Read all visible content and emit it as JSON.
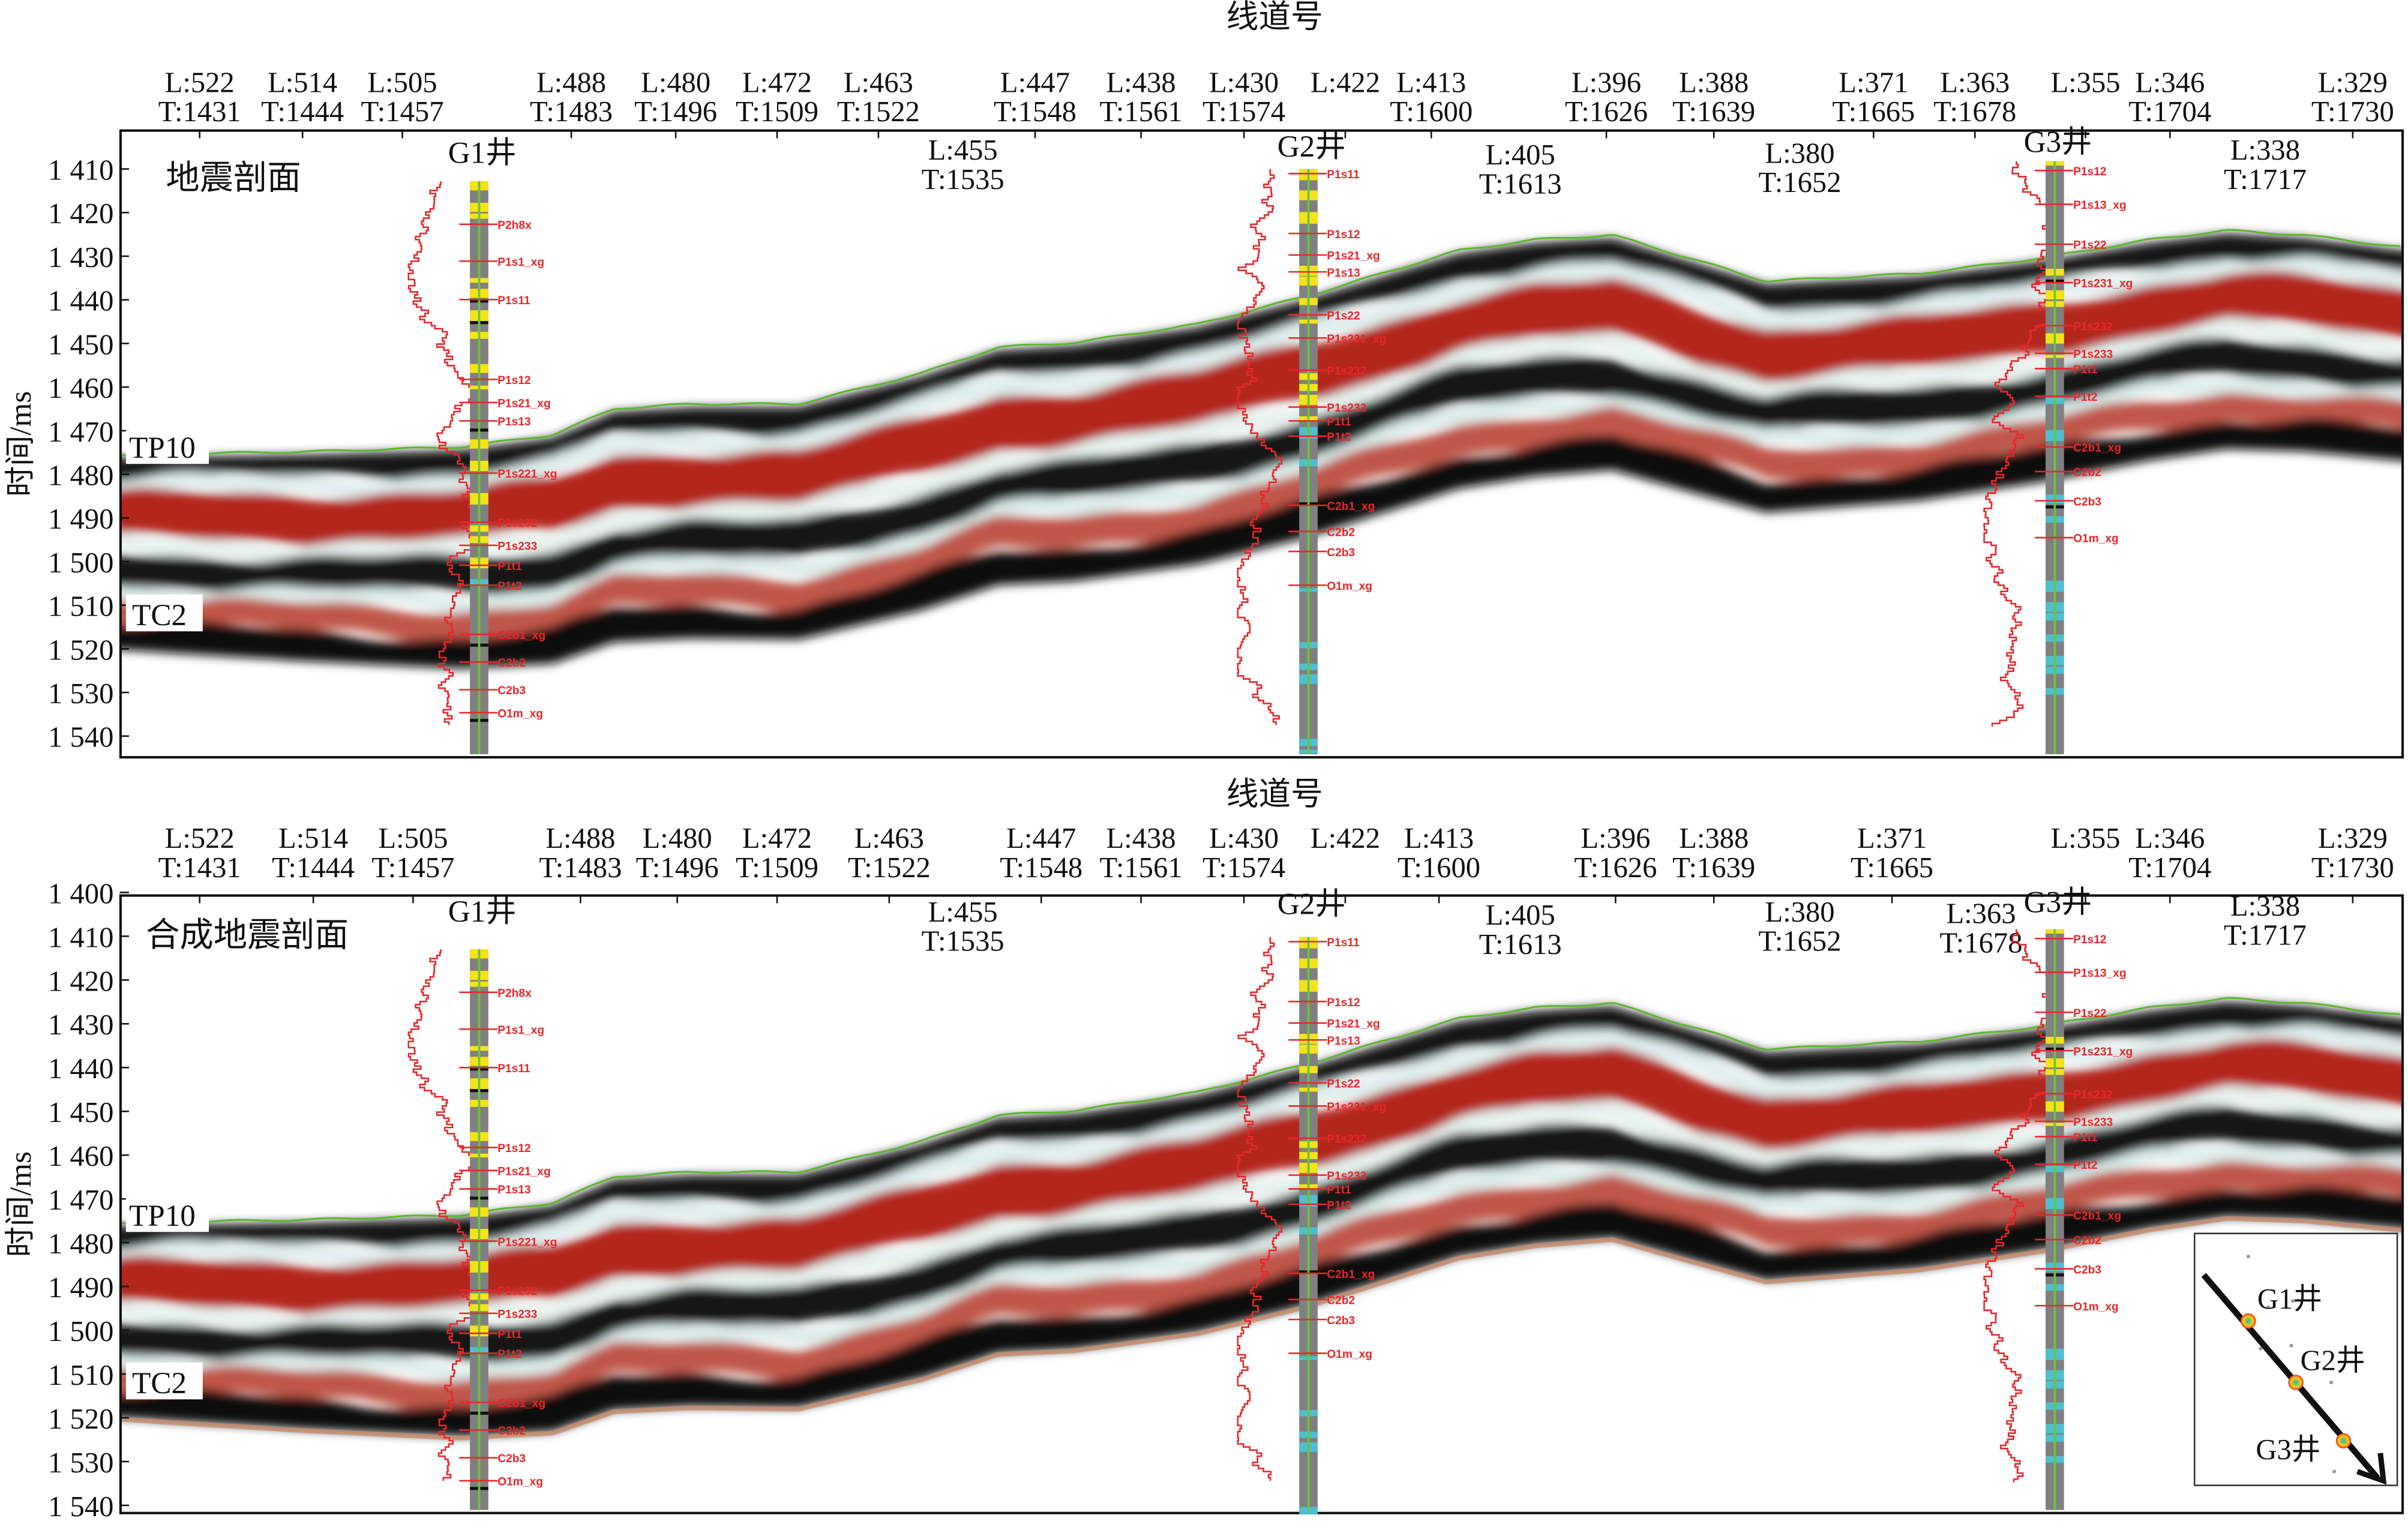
{
  "panels": [
    {
      "title": "地震剖面",
      "axis_title": "线道号",
      "y_label": "时间/ms",
      "y_ticks": [
        "1 410",
        "1 420",
        "1 430",
        "1 440",
        "1 450",
        "1 460",
        "1 470",
        "1 480",
        "1 490",
        "1 500",
        "1 510",
        "1 520",
        "1 530",
        "1 540"
      ],
      "trace_labels": [
        {
          "L": "L:522",
          "T": "T:1431"
        },
        {
          "L": "L:514",
          "T": "T:1444"
        },
        {
          "L": "L:505",
          "T": "T:1457"
        },
        {
          "L": "L:488",
          "T": "T:1483"
        },
        {
          "L": "L:480",
          "T": "T:1496"
        },
        {
          "L": "L:472",
          "T": "T:1509"
        },
        {
          "L": "L:463",
          "T": "T:1522"
        },
        {
          "L": "L:447",
          "T": "T:1548"
        },
        {
          "L": "L:438",
          "T": "T:1561"
        },
        {
          "L": "L:430",
          "T": "T:1574"
        },
        {
          "L": "L:422",
          "T": ""
        },
        {
          "L": "L:413",
          "T": "T:1600"
        },
        {
          "L": "L:396",
          "T": "T:1626"
        },
        {
          "L": "L:388",
          "T": "T:1639"
        },
        {
          "L": "L:371",
          "T": "T:1665"
        },
        {
          "L": "L:363",
          "T": "T:1678"
        },
        {
          "L": "L:355",
          "T": ""
        },
        {
          "L": "L:346",
          "T": "T:1704"
        },
        {
          "L": "L:329",
          "T": "T:1730"
        }
      ],
      "inner_trace_labels": [
        {
          "L": "L:455",
          "T": "T:1535"
        },
        {
          "L": "L:405",
          "T": "T:1613"
        },
        {
          "L": "L:380",
          "T": "T:1652"
        },
        {
          "L": "L:338",
          "T": "T:1717"
        }
      ],
      "horizons": [
        "TP10",
        "TC2"
      ],
      "wells": [
        {
          "name": "G1井",
          "formations": [
            "P2h8x",
            "P1s1_xg",
            "P1s11",
            "P1s12",
            "P1s21_xg",
            "P1s13",
            "P1s221_xg",
            "P1s232",
            "P1s233",
            "P1t1",
            "P1t2",
            "C2b1_xg",
            "C2b2",
            "C2b3",
            "O1m_xg"
          ]
        },
        {
          "name": "G2井",
          "formations": [
            "P1s11",
            "P1s12",
            "P1s21_xg",
            "P1s13",
            "P1s22",
            "P1s231_xg",
            "P1s232",
            "P1s233",
            "P1t1",
            "P1t2",
            "C2b1_xg",
            "C2b2",
            "C2b3",
            "O1m_xg"
          ]
        },
        {
          "name": "G3井",
          "formations": [
            "P1s12",
            "P1s13_xg",
            "P1s22",
            "P1s231_xg",
            "P1s232",
            "P1s233",
            "P1t1",
            "P1t2",
            "C2b1_xg",
            "C2b2",
            "C2b3",
            "O1m_xg"
          ]
        }
      ]
    },
    {
      "title": "合成地震剖面",
      "axis_title": "线道号",
      "y_label": "时间/ms",
      "y_ticks": [
        "1 400",
        "1 410",
        "1 420",
        "1 430",
        "1 440",
        "1 450",
        "1 460",
        "1 470",
        "1 480",
        "1 490",
        "1 500",
        "1 510",
        "1 520",
        "1 530",
        "1 540"
      ],
      "trace_labels": [
        {
          "L": "L:522",
          "T": "T:1431"
        },
        {
          "L": "L:514",
          "T": "T:1444"
        },
        {
          "L": "L:505",
          "T": "T:1457"
        },
        {
          "L": "L:488",
          "T": "T:1483"
        },
        {
          "L": "L:480",
          "T": "T:1496"
        },
        {
          "L": "L:472",
          "T": "T:1509"
        },
        {
          "L": "L:463",
          "T": "T:1522"
        },
        {
          "L": "L:447",
          "T": "T:1548"
        },
        {
          "L": "L:438",
          "T": "T:1561"
        },
        {
          "L": "L:430",
          "T": "T:1574"
        },
        {
          "L": "L:422",
          "T": ""
        },
        {
          "L": "L:413",
          "T": "T:1600"
        },
        {
          "L": "L:396",
          "T": "T:1626"
        },
        {
          "L": "L:388",
          "T": "T:1639"
        },
        {
          "L": "L:371",
          "T": "T:1665"
        },
        {
          "L": "L:355",
          "T": ""
        },
        {
          "L": "L:346",
          "T": "T:1704"
        },
        {
          "L": "L:329",
          "T": "T:1730"
        }
      ],
      "inner_trace_labels": [
        {
          "L": "L:455",
          "T": "T:1535"
        },
        {
          "L": "L:405",
          "T": "T:1613"
        },
        {
          "L": "L:380",
          "T": "T:1652"
        },
        {
          "L": "L:363",
          "T": "T:1678"
        },
        {
          "L": "L:338",
          "T": "T:1717"
        }
      ],
      "horizons": [
        "TP10",
        "TC2"
      ],
      "wells": [
        {
          "name": "G1井",
          "formations": [
            "P2h8x",
            "P1s1_xg",
            "P1s11",
            "P1s12",
            "P1s21_xg",
            "P1s13",
            "P1s221_xg",
            "P1s232",
            "P1s233",
            "P1t1",
            "P1t2",
            "C2b1_xg",
            "C2b2",
            "C2b3",
            "O1m_xg"
          ]
        },
        {
          "name": "G2井",
          "formations": [
            "P1s11",
            "P1s12",
            "P1s21_xg",
            "P1s13",
            "P1s22",
            "P1s231_xg",
            "P1s232",
            "P1s233",
            "P1t1",
            "P1t2",
            "C2b1_xg",
            "C2b2",
            "C2b3",
            "O1m_xg"
          ]
        },
        {
          "name": "G3井",
          "formations": [
            "P1s12",
            "P1s13_xg",
            "P1s22",
            "P1s231_xg",
            "P1s232",
            "P1s233",
            "P1t1",
            "P1t2",
            "C2b1_xg",
            "C2b2",
            "C2b3",
            "O1m_xg"
          ]
        }
      ]
    }
  ],
  "inset_map": {
    "wells": [
      "G1井",
      "G2井",
      "G3井"
    ]
  },
  "colors": {
    "red": "#b3261e",
    "black": "#111111",
    "white_halo": "#e8f4f2",
    "horizon": "#5cb82e",
    "log": "#e8262a",
    "well_grey": "#808080",
    "well_yellow": "#f4e21a",
    "well_cyan": "#4fbfcf"
  }
}
